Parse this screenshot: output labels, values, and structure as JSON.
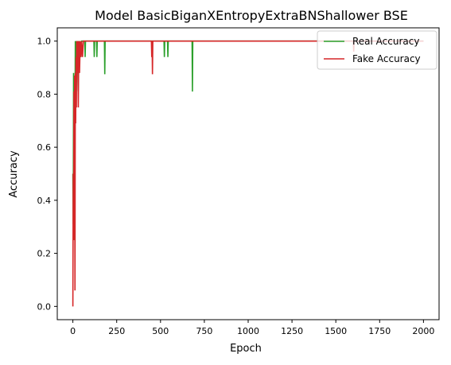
{
  "chart_data": {
    "type": "line",
    "title": "Model BasicBiganXEntropyExtraBNShallower BSE",
    "xlabel": "Epoch",
    "ylabel": "Accuracy",
    "xlim": [
      -89,
      2089
    ],
    "ylim": [
      -0.05,
      1.05
    ],
    "x_ticks": [
      0,
      250,
      500,
      750,
      1000,
      1250,
      1500,
      1750,
      2000
    ],
    "y_ticks": [
      0.0,
      0.2,
      0.4,
      0.6,
      0.8,
      1.0
    ],
    "x_tick_labels": [
      "0",
      "250",
      "500",
      "750",
      "1000",
      "1250",
      "1500",
      "1750",
      "2000"
    ],
    "y_tick_labels": [
      "0.0",
      "0.2",
      "0.4",
      "0.6",
      "0.8",
      "1.0"
    ],
    "grid": false,
    "legend_position": "top-right",
    "series": [
      {
        "name": "Real Accuracy",
        "color": "#2ca02c",
        "points": [
          [
            0,
            0.5
          ],
          [
            2,
            0.31
          ],
          [
            4,
            0.88
          ],
          [
            6,
            0.25
          ],
          [
            8,
            0.85
          ],
          [
            10,
            0.62
          ],
          [
            12,
            0.69
          ],
          [
            14,
            1.0
          ],
          [
            18,
            0.75
          ],
          [
            20,
            1.0
          ],
          [
            24,
            0.88
          ],
          [
            26,
            1.0
          ],
          [
            30,
            0.81
          ],
          [
            33,
            1.0
          ],
          [
            36,
            0.88
          ],
          [
            40,
            1.0
          ],
          [
            46,
            0.94
          ],
          [
            50,
            1.0
          ],
          [
            68,
            1.0
          ],
          [
            70,
            0.94
          ],
          [
            72,
            1.0
          ],
          [
            120,
            1.0
          ],
          [
            122,
            0.94
          ],
          [
            124,
            1.0
          ],
          [
            135,
            1.0
          ],
          [
            137,
            0.94
          ],
          [
            139,
            1.0
          ],
          [
            180,
            1.0
          ],
          [
            182,
            0.875
          ],
          [
            184,
            1.0
          ],
          [
            450,
            1.0
          ],
          [
            452,
            0.94
          ],
          [
            454,
            1.0
          ],
          [
            520,
            1.0
          ],
          [
            522,
            0.94
          ],
          [
            524,
            1.0
          ],
          [
            540,
            1.0
          ],
          [
            542,
            0.94
          ],
          [
            544,
            1.0
          ],
          [
            680,
            1.0
          ],
          [
            682,
            0.81
          ],
          [
            684,
            1.0
          ],
          [
            2000,
            1.0
          ]
        ]
      },
      {
        "name": "Fake Accuracy",
        "color": "#d62728",
        "points": [
          [
            0,
            0.0
          ],
          [
            2,
            0.5
          ],
          [
            4,
            0.25
          ],
          [
            6,
            0.81
          ],
          [
            8,
            0.5
          ],
          [
            10,
            0.87
          ],
          [
            12,
            0.06
          ],
          [
            14,
            0.88
          ],
          [
            16,
            0.69
          ],
          [
            18,
            0.94
          ],
          [
            20,
            0.75
          ],
          [
            22,
            1.0
          ],
          [
            25,
            0.88
          ],
          [
            28,
            1.0
          ],
          [
            31,
            0.75
          ],
          [
            34,
            1.0
          ],
          [
            38,
            0.88
          ],
          [
            42,
            1.0
          ],
          [
            46,
            0.94
          ],
          [
            50,
            1.0
          ],
          [
            55,
            0.94
          ],
          [
            60,
            1.0
          ],
          [
            448,
            1.0
          ],
          [
            450,
            0.94
          ],
          [
            452,
            1.0
          ],
          [
            454,
            0.875
          ],
          [
            456,
            1.0
          ],
          [
            1600,
            1.0
          ],
          [
            1602,
            0.96
          ],
          [
            1604,
            1.0
          ],
          [
            2000,
            1.0
          ]
        ]
      }
    ]
  }
}
